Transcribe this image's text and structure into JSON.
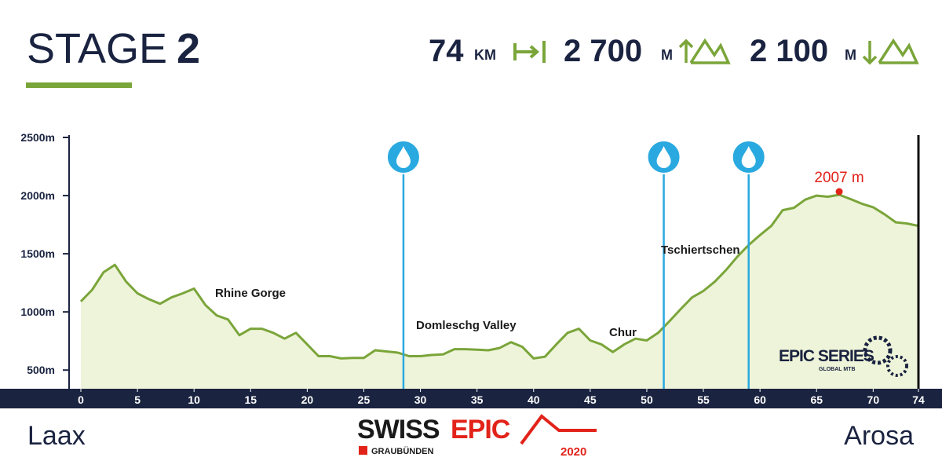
{
  "header": {
    "stage": "STAGE",
    "stage_number": "2",
    "stats": [
      {
        "value": "74",
        "unit": "KM"
      },
      {
        "value": "2 700",
        "unit": "M"
      },
      {
        "value": "2 100",
        "unit": "M"
      }
    ]
  },
  "chart_data": {
    "type": "area",
    "x": [
      0,
      1,
      2,
      3,
      4,
      5,
      6,
      7,
      8,
      9,
      10,
      11,
      12,
      13,
      14,
      15,
      16,
      17,
      18,
      19,
      20,
      21,
      22,
      23,
      24,
      25,
      26,
      27,
      28,
      29,
      30,
      31,
      32,
      33,
      34,
      35,
      36,
      37,
      38,
      39,
      40,
      41,
      42,
      43,
      44,
      45,
      46,
      47,
      48,
      49,
      50,
      51,
      52,
      53,
      54,
      55,
      56,
      57,
      58,
      59,
      60,
      61,
      62,
      63,
      64,
      65,
      66,
      67,
      68,
      69,
      70,
      71,
      72,
      73,
      74
    ],
    "values": [
      1090,
      1190,
      1340,
      1405,
      1260,
      1160,
      1110,
      1070,
      1125,
      1160,
      1200,
      1060,
      970,
      935,
      800,
      855,
      855,
      820,
      770,
      820,
      720,
      620,
      620,
      600,
      605,
      605,
      670,
      660,
      650,
      620,
      620,
      630,
      635,
      680,
      680,
      675,
      670,
      690,
      740,
      700,
      600,
      615,
      720,
      820,
      855,
      755,
      720,
      655,
      720,
      770,
      755,
      820,
      920,
      1025,
      1125,
      1180,
      1260,
      1360,
      1475,
      1575,
      1660,
      1740,
      1875,
      1895,
      1965,
      2000,
      1990,
      2007,
      1970,
      1930,
      1900,
      1840,
      1770,
      1760,
      1740
    ],
    "color": "#7aa53a",
    "xlim": [
      0,
      74
    ],
    "xticks": [
      0,
      5,
      10,
      15,
      20,
      25,
      30,
      35,
      40,
      45,
      50,
      55,
      60,
      65,
      70,
      74
    ],
    "ylim": [
      380,
      2500
    ],
    "yticks": [
      {
        "value": 500,
        "label": "500m"
      },
      {
        "value": 1000,
        "label": "1000m"
      },
      {
        "value": 1500,
        "label": "1500m"
      },
      {
        "value": 2000,
        "label": "2000m"
      },
      {
        "value": 2500,
        "label": "2500m"
      }
    ],
    "water_stations": [
      28.5,
      51.5,
      59
    ],
    "places": [
      "Rhine Gorge",
      "Domleschg Valley",
      "Chur",
      "Tschiertschen"
    ],
    "annotations": [
      {
        "text": "2007 m",
        "x": 67,
        "y": 2007
      }
    ]
  },
  "footer": {
    "start": "Laax",
    "finish": "Arosa",
    "logo": {
      "swiss": "SWISS",
      "epic": "EPIC",
      "region": "GRAUBÜNDEN",
      "year": "2020"
    },
    "series_logo": {
      "name": "EPIC SERIES",
      "sub": "GLOBAL MTB"
    }
  }
}
